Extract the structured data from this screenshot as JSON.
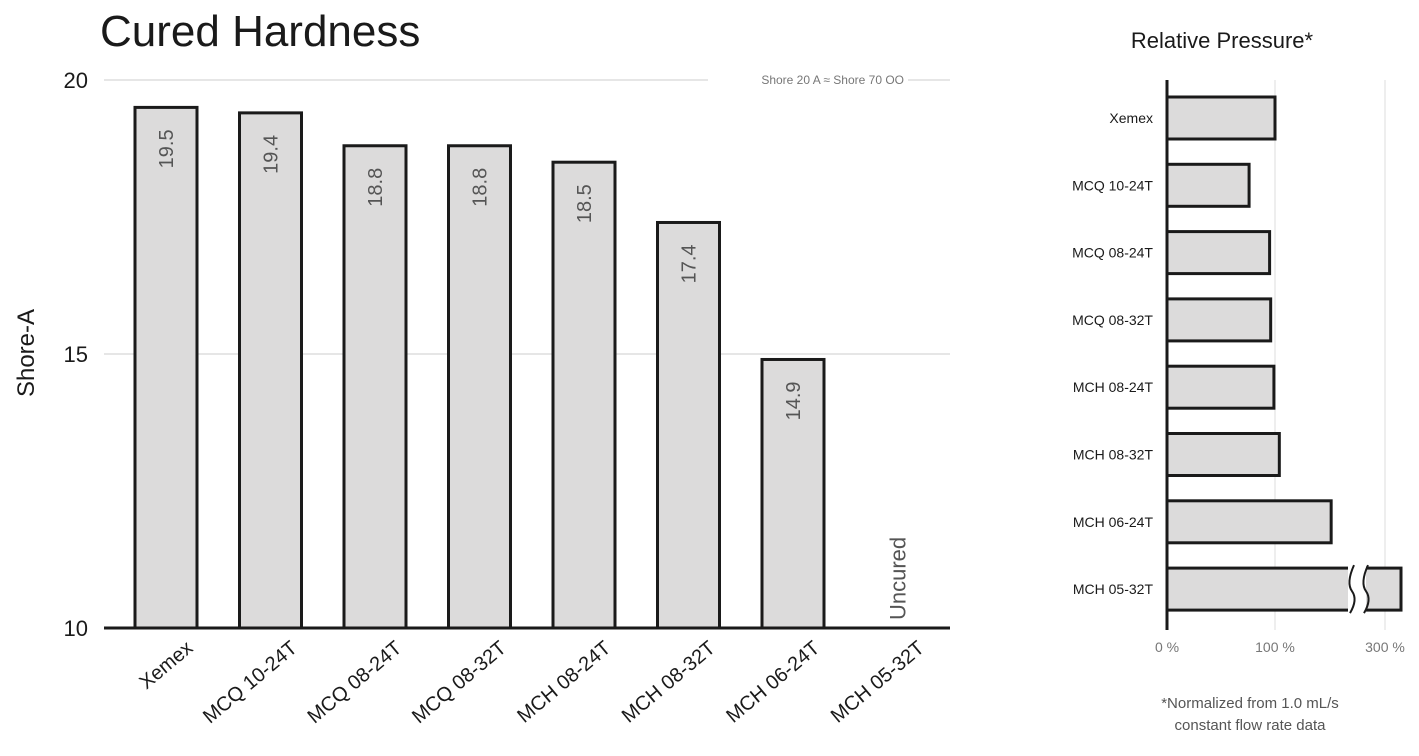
{
  "chart_data": [
    {
      "type": "bar",
      "title": "Cured Hardness",
      "ylabel": "Shore-A",
      "xlabel": "",
      "ylim": [
        10,
        20
      ],
      "yticks": [
        "10",
        "15",
        "20"
      ],
      "grid": true,
      "categories": [
        "Xemex",
        "MCQ 10-24T",
        "MCQ 08-24T",
        "MCQ 08-32T",
        "MCH 08-24T",
        "MCH 08-32T",
        "MCH 06-24T",
        "MCH 05-32T"
      ],
      "values": [
        19.5,
        19.4,
        18.8,
        18.8,
        18.5,
        17.4,
        14.9,
        null
      ],
      "value_labels": [
        "19.5",
        "19.4",
        "18.8",
        "18.8",
        "18.5",
        "17.4",
        "14.9",
        "Uncured"
      ],
      "annotation": "Shore 20 A ≈ Shore 70 OO"
    },
    {
      "type": "bar",
      "orientation": "horizontal",
      "title": "Relative Pressure*",
      "categories": [
        "Xemex",
        "MCQ 10-24T",
        "MCQ 08-24T",
        "MCQ 08-32T",
        "MCH 08-24T",
        "MCH 08-32T",
        "MCH 06-24T",
        "MCH 05-32T"
      ],
      "values": [
        100,
        76,
        95,
        96,
        99,
        104,
        152,
        320
      ],
      "axis_break": true,
      "xticks": [
        "0 %",
        "100 %",
        "300 %"
      ],
      "grid": true,
      "note": [
        "*Normalized from 1.0 mL/s",
        "constant flow rate data"
      ]
    }
  ]
}
